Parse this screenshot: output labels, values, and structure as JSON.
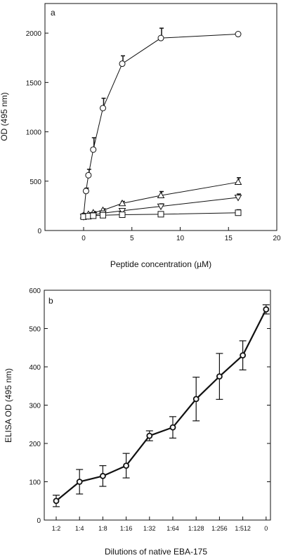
{
  "chart_data": [
    {
      "type": "line",
      "panel_label": "a",
      "xlabel": "Peptide concentration (µM)",
      "ylabel": "OD (495 nm)",
      "xlim": [
        -4,
        20
      ],
      "ylim": [
        0,
        2300
      ],
      "x_ticks": [
        0,
        5,
        10,
        15,
        20
      ],
      "y_ticks": [
        0,
        500,
        1000,
        1500,
        2000
      ],
      "grid": false,
      "legend": "none",
      "series": [
        {
          "marker": "circle",
          "x": [
            0,
            0.25,
            0.5,
            1,
            2,
            4,
            8,
            16
          ],
          "y": [
            150,
            400,
            560,
            820,
            1240,
            1690,
            1950,
            1990
          ],
          "err": [
            10,
            30,
            60,
            120,
            100,
            80,
            100,
            0
          ]
        },
        {
          "marker": "triangle-up",
          "x": [
            0,
            0.5,
            1,
            2,
            4,
            8,
            16
          ],
          "y": [
            150,
            165,
            180,
            205,
            275,
            355,
            490
          ],
          "err": [
            0,
            10,
            12,
            15,
            20,
            40,
            45
          ]
        },
        {
          "marker": "triangle-down",
          "x": [
            0,
            0.5,
            1,
            2,
            4,
            8,
            16
          ],
          "y": [
            140,
            148,
            158,
            175,
            200,
            245,
            335
          ],
          "err": [
            0,
            10,
            10,
            12,
            15,
            25,
            35
          ]
        },
        {
          "marker": "square",
          "x": [
            0,
            0.5,
            1,
            2,
            4,
            8,
            16
          ],
          "y": [
            140,
            145,
            150,
            155,
            160,
            165,
            180
          ],
          "err": [
            0,
            8,
            8,
            8,
            10,
            10,
            30
          ]
        }
      ]
    },
    {
      "type": "line",
      "panel_label": "b",
      "xlabel": "Dilutions of native EBA-175",
      "ylabel": "ELISA OD (495 nm)",
      "categories": [
        "1:2",
        "1:4",
        "1:8",
        "1:16",
        "1:32",
        "1:64",
        "1:128",
        "1:256",
        "1:512",
        "0"
      ],
      "ylim": [
        0,
        600
      ],
      "y_ticks": [
        0,
        100,
        200,
        300,
        400,
        500,
        600
      ],
      "grid": false,
      "legend": "none",
      "series": [
        {
          "marker": "circle",
          "values": [
            50,
            100,
            115,
            142,
            220,
            242,
            316,
            375,
            430,
            550
          ],
          "err": [
            15,
            32,
            27,
            32,
            13,
            28,
            57,
            60,
            38,
            12
          ]
        }
      ]
    }
  ]
}
